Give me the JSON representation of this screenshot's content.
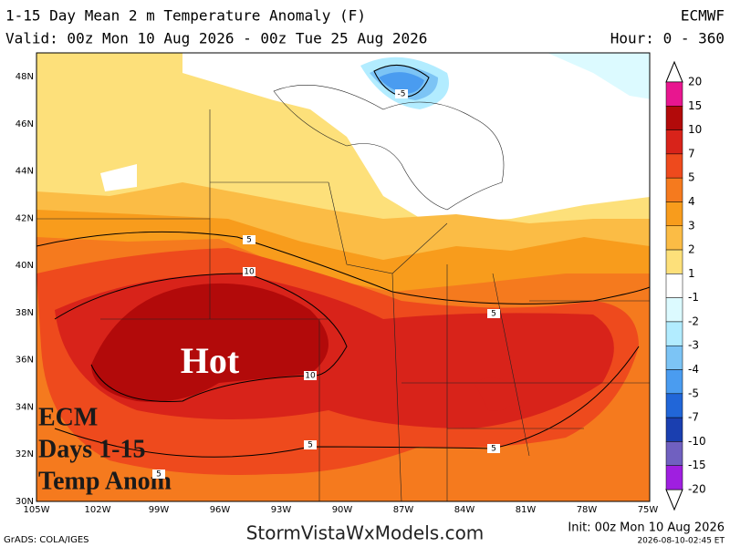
{
  "header": {
    "title": "1-15 Day Mean 2 m Temperature Anomaly (F)",
    "model": "ECMWF",
    "valid": "Valid: 00z Mon 10 Aug 2026 - 00z Tue 25 Aug 2026",
    "hours": "Hour: 0 - 360"
  },
  "lat_labels": [
    "48N",
    "46N",
    "44N",
    "42N",
    "40N",
    "38N",
    "36N",
    "34N",
    "32N",
    "30N"
  ],
  "lon_labels": [
    "105W",
    "102W",
    "99W",
    "96W",
    "93W",
    "90W",
    "87W",
    "84W",
    "81W",
    "78W",
    "75W"
  ],
  "contour_labels": [
    "-5",
    "5",
    "10",
    "10",
    "5",
    "5",
    "5",
    "5"
  ],
  "colorbar": {
    "labels": [
      "20",
      "15",
      "10",
      "7",
      "5",
      "4",
      "3",
      "2",
      "1",
      "-1",
      "-2",
      "-3",
      "-4",
      "-5",
      "-7",
      "-10",
      "-15",
      "-20"
    ],
    "colors": [
      "#e8168f",
      "#b20a0a",
      "#d8231a",
      "#ee4a1d",
      "#f57a1e",
      "#f89c1c",
      "#fbbc45",
      "#fde07a",
      "#ffffff",
      "#dcfaff",
      "#b2ecff",
      "#7cc4f5",
      "#4a9cf0",
      "#2166d8",
      "#1a3fb0",
      "#7060c0",
      "#9f1fe0"
    ]
  },
  "overlays": [
    "Hot",
    "ECM",
    "Days 1-15",
    "Temp Anom"
  ],
  "footer": {
    "credit": "GrADS: COLA/IGES",
    "site": "StormVistaWxModels.com",
    "init": "Init: 00z Mon 10 Aug 2026",
    "timestamp": "2026-08-10-02:45 ET"
  }
}
